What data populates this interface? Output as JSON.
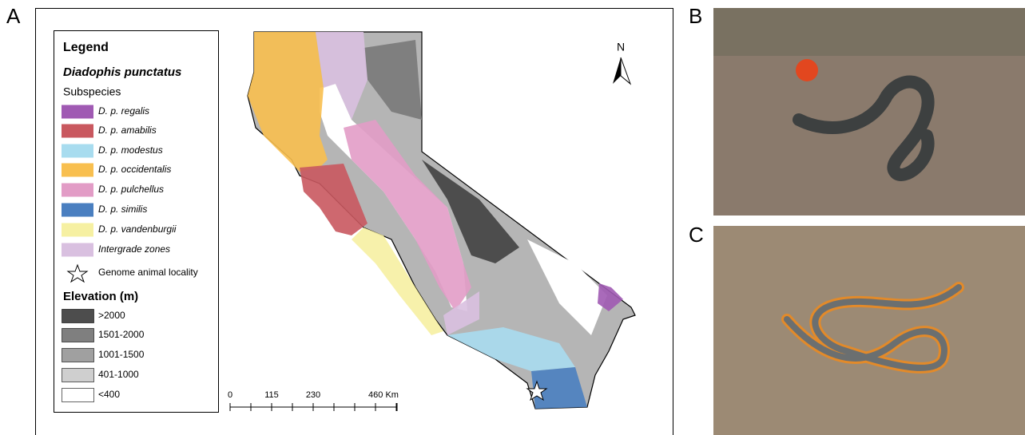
{
  "panels": {
    "a": "A",
    "b": "B",
    "c": "C"
  },
  "legend": {
    "title": "Legend",
    "species": "Diadophis punctatus",
    "subspecies_heading": "Subspecies",
    "subspecies": [
      {
        "label": "D. p. regalis",
        "color": "#a05ab3"
      },
      {
        "label": "D. p. amabilis",
        "color": "#c9585f"
      },
      {
        "label": "D. p. modestus",
        "color": "#a8dcef"
      },
      {
        "label": "D. p. occidentalis",
        "color": "#f8bf4f"
      },
      {
        "label": "D. p. pulchellus",
        "color": "#e29cc6"
      },
      {
        "label": "D. p. similis",
        "color": "#4a7fc0"
      },
      {
        "label": "D. p. vandenburgii",
        "color": "#f6f0a2"
      },
      {
        "label": "Intergrade zones",
        "color": "#d9c0e0"
      }
    ],
    "genome_locality": "Genome animal locality",
    "elevation_title": "Elevation (m)",
    "elevation": [
      {
        "label": ">2000",
        "color": "#4d4d4d"
      },
      {
        "label": "1501-2000",
        "color": "#7f7f7f"
      },
      {
        "label": "1001-1500",
        "color": "#a0a0a0"
      },
      {
        "label": "401-1000",
        "color": "#cfcfcf"
      },
      {
        "label": "<400",
        "color": "#ffffff"
      }
    ]
  },
  "north": "N",
  "scale_bar": [
    "0",
    "115",
    "230",
    "460 Km"
  ]
}
